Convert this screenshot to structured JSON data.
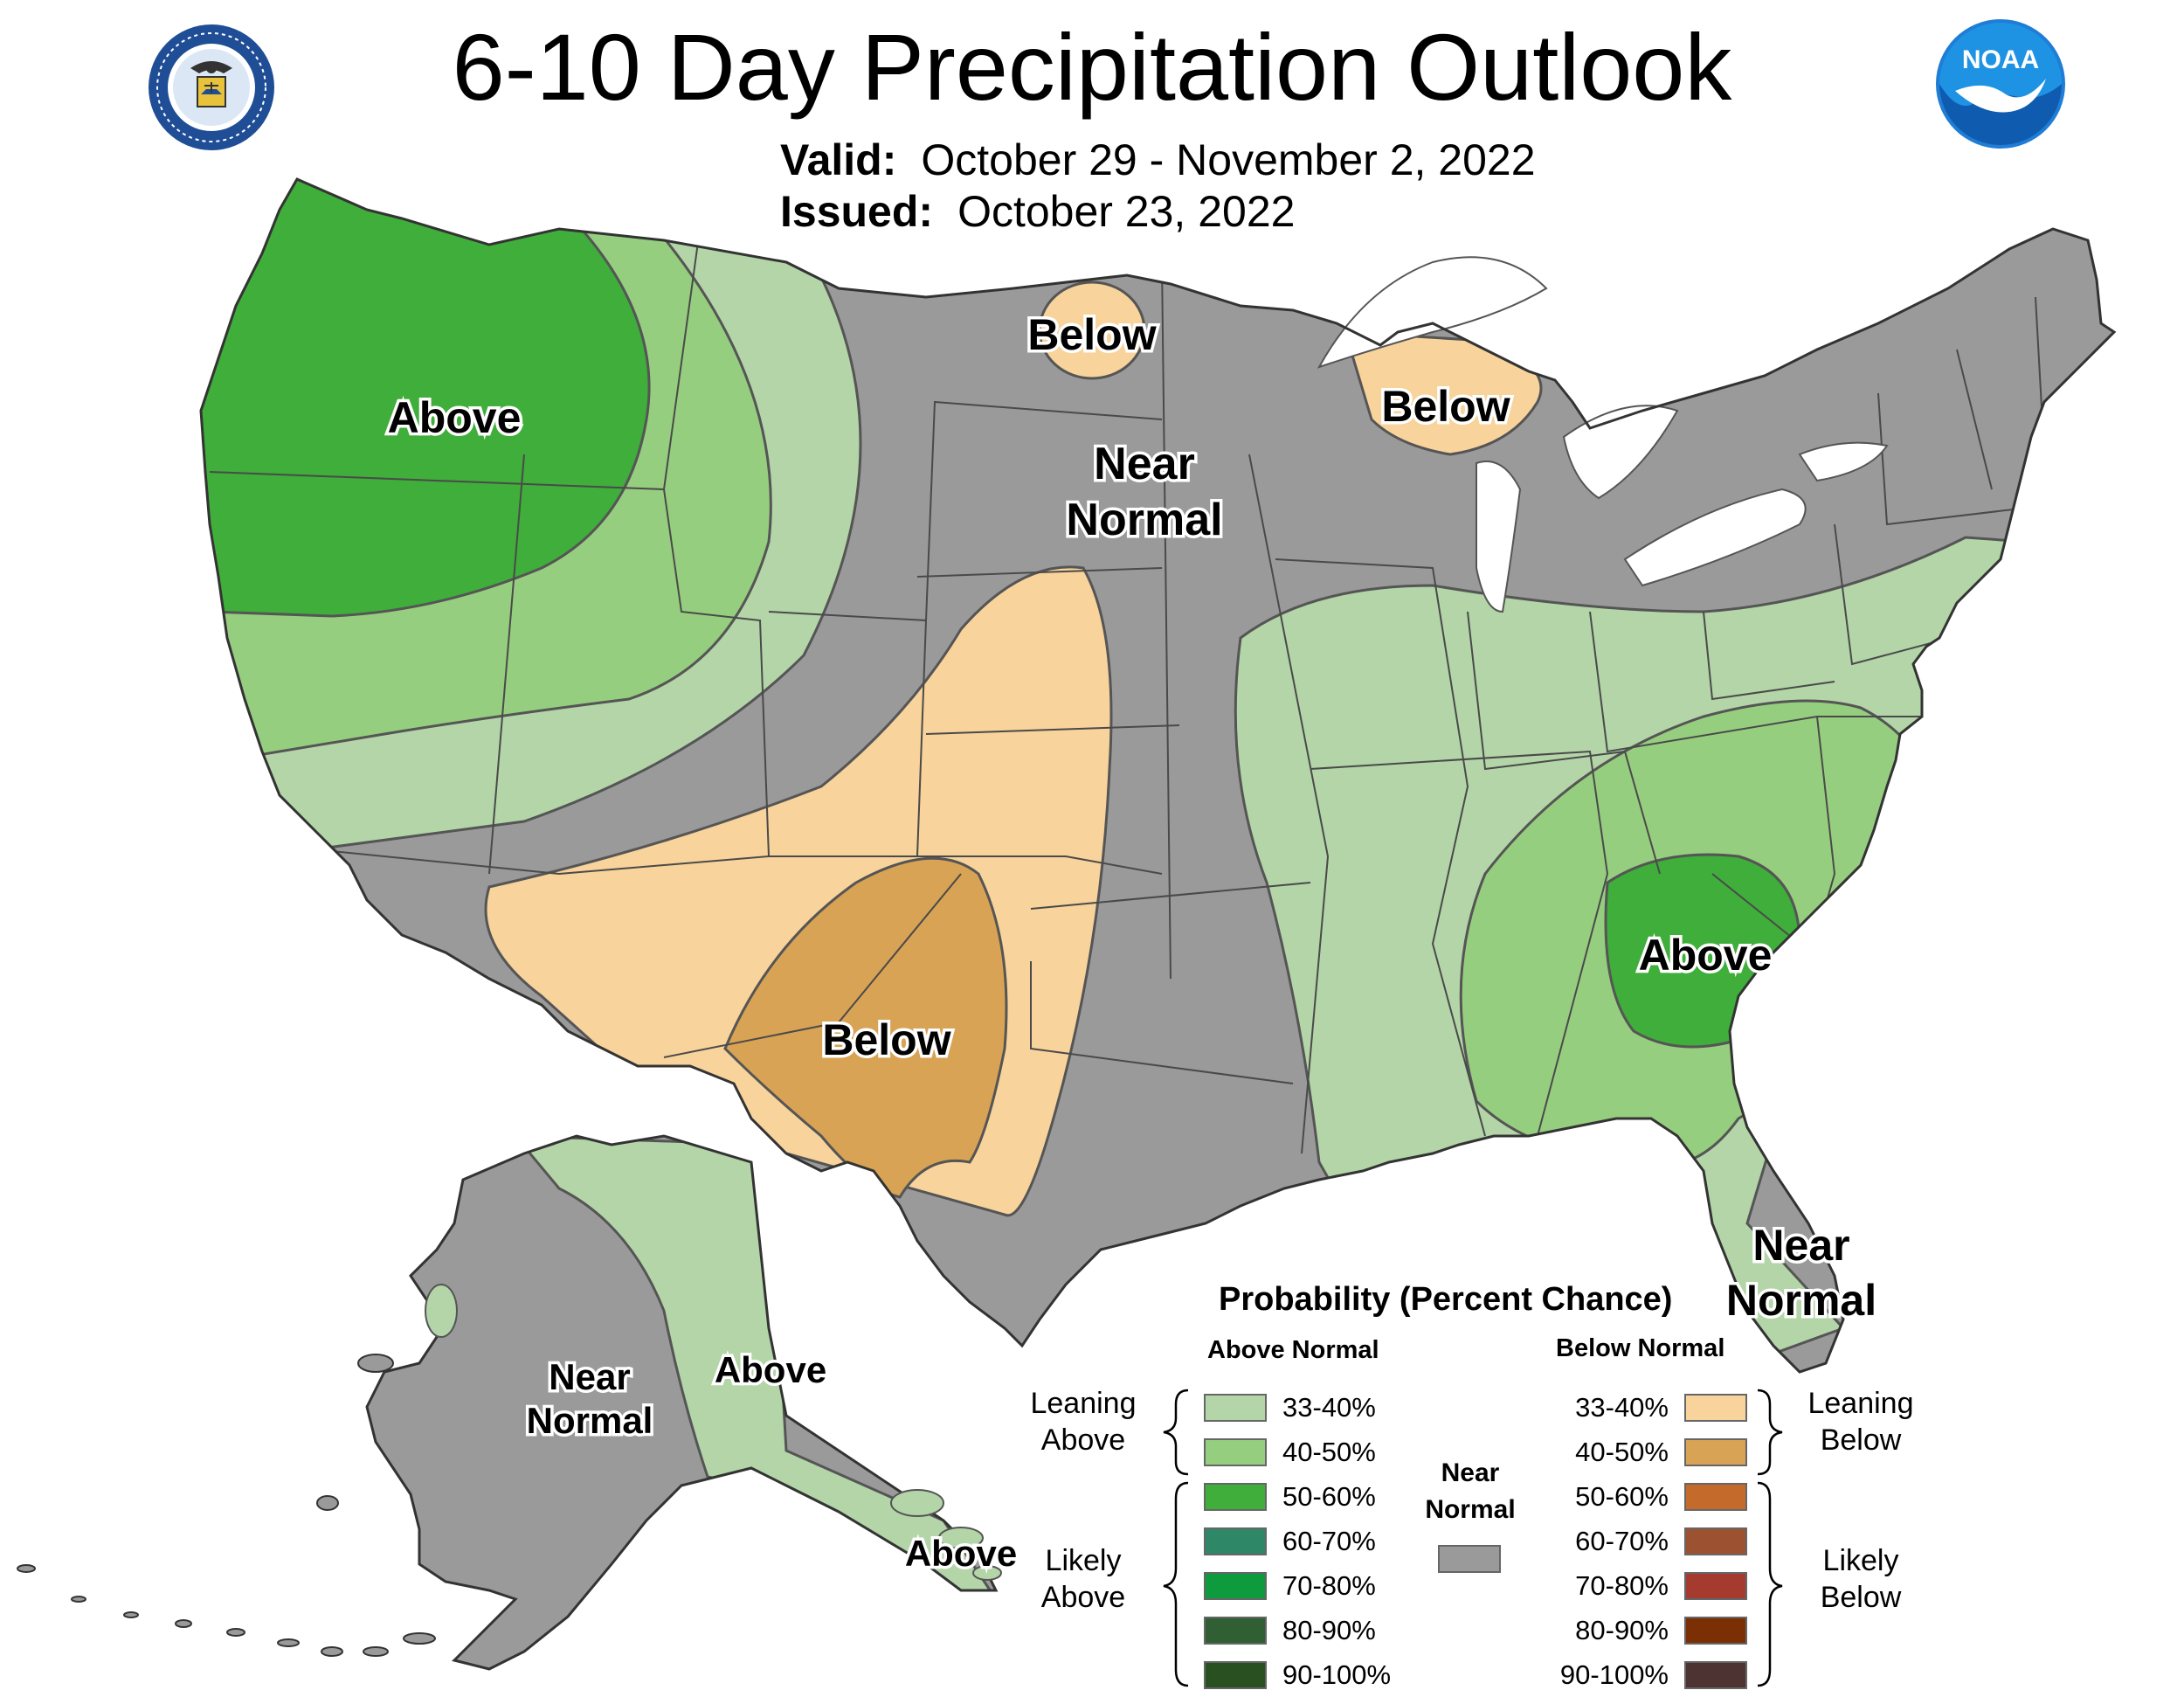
{
  "title": "6-10 Day Precipitation Outlook",
  "valid": {
    "label": "Valid:",
    "value": "October 29 - November 2, 2022"
  },
  "issued": {
    "label": "Issued:",
    "value": "October 23, 2022"
  },
  "logos": {
    "left": "department-of-commerce-seal",
    "right": "noaa-logo",
    "noaa_text": "NOAA"
  },
  "regions": {
    "northwest": "Above",
    "north_dakota": "Below",
    "upper_michigan": "Below",
    "central_1": "Near",
    "central_2": "Normal",
    "southwest": "Below",
    "southeast": "Above",
    "florida_1": "Near",
    "florida_2": "Normal",
    "alaska_west_1": "Near",
    "alaska_west_2": "Normal",
    "alaska_east": "Above",
    "alaska_panhandle": "Above"
  },
  "legend": {
    "title": "Probability (Percent Chance)",
    "above_header": "Above Normal",
    "below_header": "Below Normal",
    "near_header_1": "Near",
    "near_header_2": "Normal",
    "leaning_above_1": "Leaning",
    "leaning_above_2": "Above",
    "likely_above_1": "Likely",
    "likely_above_2": "Above",
    "leaning_below_1": "Leaning",
    "leaning_below_2": "Below",
    "likely_below_1": "Likely",
    "likely_below_2": "Below",
    "above": [
      {
        "label": "33-40%",
        "color": "#b3d5a8"
      },
      {
        "label": "40-50%",
        "color": "#96ce7f"
      },
      {
        "label": "50-60%",
        "color": "#3fae3a"
      },
      {
        "label": "60-70%",
        "color": "#2e8868"
      },
      {
        "label": "70-80%",
        "color": "#0e9b3e"
      },
      {
        "label": "80-90%",
        "color": "#2f5f33"
      },
      {
        "label": "90-100%",
        "color": "#285020"
      }
    ],
    "below": [
      {
        "label": "33-40%",
        "color": "#f8d39b"
      },
      {
        "label": "40-50%",
        "color": "#d8a354"
      },
      {
        "label": "50-60%",
        "color": "#c46b2b"
      },
      {
        "label": "60-70%",
        "color": "#9c5230"
      },
      {
        "label": "70-80%",
        "color": "#a53a2f"
      },
      {
        "label": "80-90%",
        "color": "#7a3004"
      },
      {
        "label": "90-100%",
        "color": "#4d3433"
      }
    ],
    "near_color": "#9a9a9a"
  },
  "colors": {
    "near_normal": "#9a9a9a",
    "above_33_40": "#b3d5a8",
    "above_40_50": "#96ce7f",
    "above_50_60": "#3fae3a",
    "below_33_40": "#f8d39b",
    "below_40_50": "#d8a354",
    "boundary": "#555555"
  }
}
